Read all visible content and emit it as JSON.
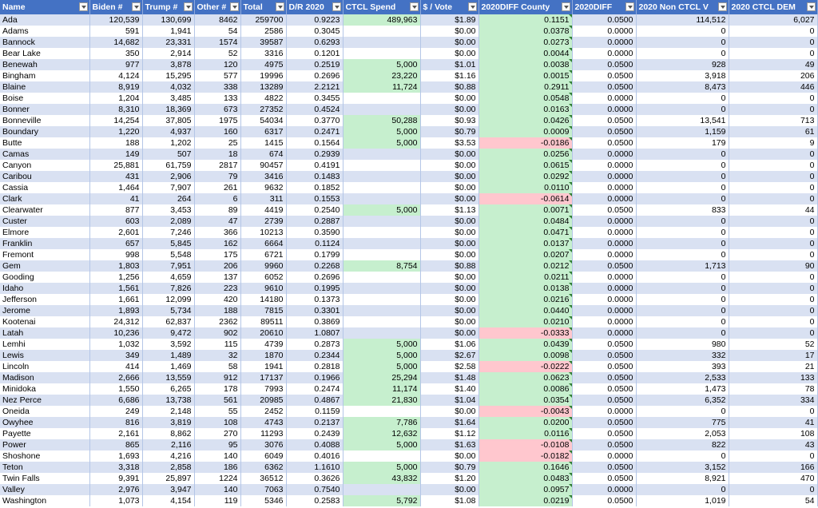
{
  "columns": [
    "Name",
    "Biden #",
    "Trump #",
    "Other #",
    "Total",
    "D/R 2020",
    "CTCL Spend",
    "$ / Vote",
    "2020DIFF County",
    "2020DIFF",
    "2020 Non CTCL V",
    "2020 CTCL DEM"
  ],
  "colors": {
    "header_bg": "#4472c4",
    "band": "#d9e1f2",
    "green_fill": "#c6efce",
    "red_fill": "#ffc7ce"
  },
  "rows": [
    {
      "name": "Ada",
      "biden": "120,539",
      "trump": "130,699",
      "other": "8462",
      "total": "259700",
      "dr": "0.9223",
      "spend": "489,963",
      "pv": "$1.89",
      "diffc": "0.1151",
      "diff": "0.0500",
      "nonctcl": "114,512",
      "ctcldem": "6,027"
    },
    {
      "name": "Adams",
      "biden": "591",
      "trump": "1,941",
      "other": "54",
      "total": "2586",
      "dr": "0.3045",
      "spend": "",
      "pv": "$0.00",
      "diffc": "0.0378",
      "diff": "0.0000",
      "nonctcl": "0",
      "ctcldem": "0"
    },
    {
      "name": "Bannock",
      "biden": "14,682",
      "trump": "23,331",
      "other": "1574",
      "total": "39587",
      "dr": "0.6293",
      "spend": "",
      "pv": "$0.00",
      "diffc": "0.0273",
      "diff": "0.0000",
      "nonctcl": "0",
      "ctcldem": "0"
    },
    {
      "name": "Bear Lake",
      "biden": "350",
      "trump": "2,914",
      "other": "52",
      "total": "3316",
      "dr": "0.1201",
      "spend": "",
      "pv": "$0.00",
      "diffc": "0.0044",
      "diff": "0.0000",
      "nonctcl": "0",
      "ctcldem": "0"
    },
    {
      "name": "Benewah",
      "biden": "977",
      "trump": "3,878",
      "other": "120",
      "total": "4975",
      "dr": "0.2519",
      "spend": "5,000",
      "pv": "$1.01",
      "diffc": "0.0038",
      "diff": "0.0500",
      "nonctcl": "928",
      "ctcldem": "49"
    },
    {
      "name": "Bingham",
      "biden": "4,124",
      "trump": "15,295",
      "other": "577",
      "total": "19996",
      "dr": "0.2696",
      "spend": "23,220",
      "pv": "$1.16",
      "diffc": "0.0015",
      "diff": "0.0500",
      "nonctcl": "3,918",
      "ctcldem": "206"
    },
    {
      "name": "Blaine",
      "biden": "8,919",
      "trump": "4,032",
      "other": "338",
      "total": "13289",
      "dr": "2.2121",
      "spend": "11,724",
      "pv": "$0.88",
      "diffc": "0.2911",
      "diff": "0.0500",
      "nonctcl": "8,473",
      "ctcldem": "446"
    },
    {
      "name": "Boise",
      "biden": "1,204",
      "trump": "3,485",
      "other": "133",
      "total": "4822",
      "dr": "0.3455",
      "spend": "",
      "pv": "$0.00",
      "diffc": "0.0548",
      "diff": "0.0000",
      "nonctcl": "0",
      "ctcldem": "0"
    },
    {
      "name": "Bonner",
      "biden": "8,310",
      "trump": "18,369",
      "other": "673",
      "total": "27352",
      "dr": "0.4524",
      "spend": "",
      "pv": "$0.00",
      "diffc": "0.0163",
      "diff": "0.0000",
      "nonctcl": "0",
      "ctcldem": "0"
    },
    {
      "name": "Bonneville",
      "biden": "14,254",
      "trump": "37,805",
      "other": "1975",
      "total": "54034",
      "dr": "0.3770",
      "spend": "50,288",
      "pv": "$0.93",
      "diffc": "0.0426",
      "diff": "0.0500",
      "nonctcl": "13,541",
      "ctcldem": "713"
    },
    {
      "name": "Boundary",
      "biden": "1,220",
      "trump": "4,937",
      "other": "160",
      "total": "6317",
      "dr": "0.2471",
      "spend": "5,000",
      "pv": "$0.79",
      "diffc": "0.0009",
      "diff": "0.0500",
      "nonctcl": "1,159",
      "ctcldem": "61"
    },
    {
      "name": "Butte",
      "biden": "188",
      "trump": "1,202",
      "other": "25",
      "total": "1415",
      "dr": "0.1564",
      "spend": "5,000",
      "pv": "$3.53",
      "diffc": "-0.0186",
      "diff": "0.0500",
      "nonctcl": "179",
      "ctcldem": "9"
    },
    {
      "name": "Camas",
      "biden": "149",
      "trump": "507",
      "other": "18",
      "total": "674",
      "dr": "0.2939",
      "spend": "",
      "pv": "$0.00",
      "diffc": "0.0256",
      "diff": "0.0000",
      "nonctcl": "0",
      "ctcldem": "0"
    },
    {
      "name": "Canyon",
      "biden": "25,881",
      "trump": "61,759",
      "other": "2817",
      "total": "90457",
      "dr": "0.4191",
      "spend": "",
      "pv": "$0.00",
      "diffc": "0.0615",
      "diff": "0.0000",
      "nonctcl": "0",
      "ctcldem": "0"
    },
    {
      "name": "Caribou",
      "biden": "431",
      "trump": "2,906",
      "other": "79",
      "total": "3416",
      "dr": "0.1483",
      "spend": "",
      "pv": "$0.00",
      "diffc": "0.0292",
      "diff": "0.0000",
      "nonctcl": "0",
      "ctcldem": "0"
    },
    {
      "name": "Cassia",
      "biden": "1,464",
      "trump": "7,907",
      "other": "261",
      "total": "9632",
      "dr": "0.1852",
      "spend": "",
      "pv": "$0.00",
      "diffc": "0.0110",
      "diff": "0.0000",
      "nonctcl": "0",
      "ctcldem": "0"
    },
    {
      "name": "Clark",
      "biden": "41",
      "trump": "264",
      "other": "6",
      "total": "311",
      "dr": "0.1553",
      "spend": "",
      "pv": "$0.00",
      "diffc": "-0.0614",
      "diff": "0.0000",
      "nonctcl": "0",
      "ctcldem": "0"
    },
    {
      "name": "Clearwater",
      "biden": "877",
      "trump": "3,453",
      "other": "89",
      "total": "4419",
      "dr": "0.2540",
      "spend": "5,000",
      "pv": "$1.13",
      "diffc": "0.0071",
      "diff": "0.0500",
      "nonctcl": "833",
      "ctcldem": "44"
    },
    {
      "name": "Custer",
      "biden": "603",
      "trump": "2,089",
      "other": "47",
      "total": "2739",
      "dr": "0.2887",
      "spend": "",
      "pv": "$0.00",
      "diffc": "0.0484",
      "diff": "0.0000",
      "nonctcl": "0",
      "ctcldem": "0"
    },
    {
      "name": "Elmore",
      "biden": "2,601",
      "trump": "7,246",
      "other": "366",
      "total": "10213",
      "dr": "0.3590",
      "spend": "",
      "pv": "$0.00",
      "diffc": "0.0471",
      "diff": "0.0000",
      "nonctcl": "0",
      "ctcldem": "0"
    },
    {
      "name": "Franklin",
      "biden": "657",
      "trump": "5,845",
      "other": "162",
      "total": "6664",
      "dr": "0.1124",
      "spend": "",
      "pv": "$0.00",
      "diffc": "0.0137",
      "diff": "0.0000",
      "nonctcl": "0",
      "ctcldem": "0"
    },
    {
      "name": "Fremont",
      "biden": "998",
      "trump": "5,548",
      "other": "175",
      "total": "6721",
      "dr": "0.1799",
      "spend": "",
      "pv": "$0.00",
      "diffc": "0.0207",
      "diff": "0.0000",
      "nonctcl": "0",
      "ctcldem": "0"
    },
    {
      "name": "Gem",
      "biden": "1,803",
      "trump": "7,951",
      "other": "206",
      "total": "9960",
      "dr": "0.2268",
      "spend": "8,754",
      "pv": "$0.88",
      "diffc": "0.0212",
      "diff": "0.0500",
      "nonctcl": "1,713",
      "ctcldem": "90"
    },
    {
      "name": "Gooding",
      "biden": "1,256",
      "trump": "4,659",
      "other": "137",
      "total": "6052",
      "dr": "0.2696",
      "spend": "",
      "pv": "$0.00",
      "diffc": "0.0211",
      "diff": "0.0000",
      "nonctcl": "0",
      "ctcldem": "0"
    },
    {
      "name": "Idaho",
      "biden": "1,561",
      "trump": "7,826",
      "other": "223",
      "total": "9610",
      "dr": "0.1995",
      "spend": "",
      "pv": "$0.00",
      "diffc": "0.0138",
      "diff": "0.0000",
      "nonctcl": "0",
      "ctcldem": "0"
    },
    {
      "name": "Jefferson",
      "biden": "1,661",
      "trump": "12,099",
      "other": "420",
      "total": "14180",
      "dr": "0.1373",
      "spend": "",
      "pv": "$0.00",
      "diffc": "0.0216",
      "diff": "0.0000",
      "nonctcl": "0",
      "ctcldem": "0"
    },
    {
      "name": "Jerome",
      "biden": "1,893",
      "trump": "5,734",
      "other": "188",
      "total": "7815",
      "dr": "0.3301",
      "spend": "",
      "pv": "$0.00",
      "diffc": "0.0440",
      "diff": "0.0000",
      "nonctcl": "0",
      "ctcldem": "0"
    },
    {
      "name": "Kootenai",
      "biden": "24,312",
      "trump": "62,837",
      "other": "2362",
      "total": "89511",
      "dr": "0.3869",
      "spend": "",
      "pv": "$0.00",
      "diffc": "0.0210",
      "diff": "0.0000",
      "nonctcl": "0",
      "ctcldem": "0"
    },
    {
      "name": "Latah",
      "biden": "10,236",
      "trump": "9,472",
      "other": "902",
      "total": "20610",
      "dr": "1.0807",
      "spend": "",
      "pv": "$0.00",
      "diffc": "-0.0333",
      "diff": "0.0000",
      "nonctcl": "0",
      "ctcldem": "0"
    },
    {
      "name": "Lemhi",
      "biden": "1,032",
      "trump": "3,592",
      "other": "115",
      "total": "4739",
      "dr": "0.2873",
      "spend": "5,000",
      "pv": "$1.06",
      "diffc": "0.0439",
      "diff": "0.0500",
      "nonctcl": "980",
      "ctcldem": "52"
    },
    {
      "name": "Lewis",
      "biden": "349",
      "trump": "1,489",
      "other": "32",
      "total": "1870",
      "dr": "0.2344",
      "spend": "5,000",
      "pv": "$2.67",
      "diffc": "0.0098",
      "diff": "0.0500",
      "nonctcl": "332",
      "ctcldem": "17"
    },
    {
      "name": "Lincoln",
      "biden": "414",
      "trump": "1,469",
      "other": "58",
      "total": "1941",
      "dr": "0.2818",
      "spend": "5,000",
      "pv": "$2.58",
      "diffc": "-0.0222",
      "diff": "0.0500",
      "nonctcl": "393",
      "ctcldem": "21"
    },
    {
      "name": "Madison",
      "biden": "2,666",
      "trump": "13,559",
      "other": "912",
      "total": "17137",
      "dr": "0.1966",
      "spend": "25,294",
      "pv": "$1.48",
      "diffc": "0.0623",
      "diff": "0.0500",
      "nonctcl": "2,533",
      "ctcldem": "133"
    },
    {
      "name": "Minidoka",
      "biden": "1,550",
      "trump": "6,265",
      "other": "178",
      "total": "7993",
      "dr": "0.2474",
      "spend": "11,174",
      "pv": "$1.40",
      "diffc": "0.0086",
      "diff": "0.0500",
      "nonctcl": "1,473",
      "ctcldem": "78"
    },
    {
      "name": "Nez Perce",
      "biden": "6,686",
      "trump": "13,738",
      "other": "561",
      "total": "20985",
      "dr": "0.4867",
      "spend": "21,830",
      "pv": "$1.04",
      "diffc": "0.0354",
      "diff": "0.0500",
      "nonctcl": "6,352",
      "ctcldem": "334"
    },
    {
      "name": "Oneida",
      "biden": "249",
      "trump": "2,148",
      "other": "55",
      "total": "2452",
      "dr": "0.1159",
      "spend": "",
      "pv": "$0.00",
      "diffc": "-0.0043",
      "diff": "0.0000",
      "nonctcl": "0",
      "ctcldem": "0"
    },
    {
      "name": "Owyhee",
      "biden": "816",
      "trump": "3,819",
      "other": "108",
      "total": "4743",
      "dr": "0.2137",
      "spend": "7,786",
      "pv": "$1.64",
      "diffc": "0.0200",
      "diff": "0.0500",
      "nonctcl": "775",
      "ctcldem": "41"
    },
    {
      "name": "Payette",
      "biden": "2,161",
      "trump": "8,862",
      "other": "270",
      "total": "11293",
      "dr": "0.2439",
      "spend": "12,632",
      "pv": "$1.12",
      "diffc": "0.0116",
      "diff": "0.0500",
      "nonctcl": "2,053",
      "ctcldem": "108"
    },
    {
      "name": "Power",
      "biden": "865",
      "trump": "2,116",
      "other": "95",
      "total": "3076",
      "dr": "0.4088",
      "spend": "5,000",
      "pv": "$1.63",
      "diffc": "-0.0108",
      "diff": "0.0500",
      "nonctcl": "822",
      "ctcldem": "43"
    },
    {
      "name": "Shoshone",
      "biden": "1,693",
      "trump": "4,216",
      "other": "140",
      "total": "6049",
      "dr": "0.4016",
      "spend": "",
      "pv": "$0.00",
      "diffc": "-0.0182",
      "diff": "0.0000",
      "nonctcl": "0",
      "ctcldem": "0"
    },
    {
      "name": "Teton",
      "biden": "3,318",
      "trump": "2,858",
      "other": "186",
      "total": "6362",
      "dr": "1.1610",
      "spend": "5,000",
      "pv": "$0.79",
      "diffc": "0.1646",
      "diff": "0.0500",
      "nonctcl": "3,152",
      "ctcldem": "166"
    },
    {
      "name": "Twin Falls",
      "biden": "9,391",
      "trump": "25,897",
      "other": "1224",
      "total": "36512",
      "dr": "0.3626",
      "spend": "43,832",
      "pv": "$1.20",
      "diffc": "0.0483",
      "diff": "0.0500",
      "nonctcl": "8,921",
      "ctcldem": "470"
    },
    {
      "name": "Valley",
      "biden": "2,976",
      "trump": "3,947",
      "other": "140",
      "total": "7063",
      "dr": "0.7540",
      "spend": "",
      "pv": "$0.00",
      "diffc": "0.0957",
      "diff": "0.0000",
      "nonctcl": "0",
      "ctcldem": "0"
    },
    {
      "name": "Washington",
      "biden": "1,073",
      "trump": "4,154",
      "other": "119",
      "total": "5346",
      "dr": "0.2583",
      "spend": "5,792",
      "pv": "$1.08",
      "diffc": "0.0219",
      "diff": "0.0500",
      "nonctcl": "1,019",
      "ctcldem": "54"
    }
  ]
}
